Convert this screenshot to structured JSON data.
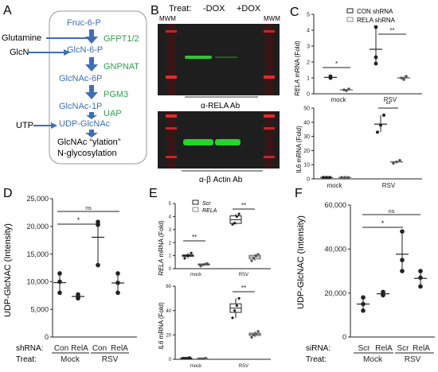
{
  "panels": {
    "a": {
      "letter": "A",
      "pathway": [
        "Fruc-6-P",
        "GlcN-6-P",
        "GlcNAc-6P",
        "GlcNAc-1P",
        "UDP-GlcNAc"
      ],
      "enzymes": [
        "GFPT1/2",
        "GNPNAT",
        "PGM3",
        "UAP"
      ],
      "inputs": [
        "Glutamine",
        "GlcN",
        "UTP"
      ],
      "product_line1": "GlcNAc “ylation”",
      "product_line2": "N-glycosylation",
      "colors": {
        "pathway": "#3d6fb5",
        "enzyme": "#2e9e4f",
        "arrow": "#3d6fb5"
      }
    },
    "b": {
      "letter": "B",
      "treat_label": "Treat:",
      "lanes": [
        "-DOX",
        "+DOX"
      ],
      "marker": "MWM",
      "blot1_label": "α-RELA Ab",
      "blot2_label": "α-β Actin Ab"
    },
    "c": {
      "letter": "C",
      "legend": [
        "CON shRNA",
        "RELA shRNA"
      ],
      "top_ylabel": "mRNA (Fold)",
      "top_ylabel_italic": "RELA",
      "bottom_ylabel": "IL6 mRNA (Fold)",
      "xlabels": [
        "mock",
        "RSV"
      ],
      "sig": [
        "*",
        "**",
        "**"
      ]
    },
    "d": {
      "letter": "D",
      "ylabel": "UDP-GlcNAC (Intensity)",
      "row1_label": "shRNA:",
      "row2_label": "Treat:",
      "shrna": [
        "Con",
        "RelA",
        "Con",
        "RelA"
      ],
      "treat": [
        "Mock",
        "RSV"
      ],
      "sig": [
        "*",
        "ns"
      ]
    },
    "e": {
      "letter": "E",
      "legend": [
        "Scr",
        "RELA"
      ],
      "top_ylabel": "mRNA (Fold)",
      "top_ylabel_italic": "RELA",
      "bottom_ylabel": "mRNA (Fold)",
      "bottom_ylabel_italic": "IL6",
      "xlabels": [
        "mock",
        "RSV"
      ],
      "sig": [
        "**",
        "**",
        "**"
      ]
    },
    "f": {
      "letter": "F",
      "ylabel": "UDP-GlcNAC (Intensity)",
      "row1_label": "siRNA:",
      "row2_label": "Treat:",
      "sirna": [
        "Scr",
        "RelA",
        "Scr",
        "RelA"
      ],
      "treat": [
        "Mock",
        "RSV"
      ],
      "sig": [
        "*",
        "ns"
      ]
    }
  },
  "chart_data": [
    {
      "panel": "C-top",
      "type": "scatter",
      "ylabel": "RELA mRNA (Fold)",
      "ylim": [
        0,
        5
      ],
      "yticks": [
        "0",
        "1",
        "2",
        "3",
        "4",
        "5"
      ],
      "categories": [
        "mock",
        "RSV"
      ],
      "series": [
        {
          "name": "CON shRNA",
          "values": [
            [
              1.0,
              1.0,
              1.1
            ],
            [
              1.9,
              2.3,
              4.2
            ]
          ]
        },
        {
          "name": "RELA shRNA",
          "values": [
            [
              0.25,
              0.2,
              0.3
            ],
            [
              1.0,
              0.9,
              1.1
            ]
          ]
        }
      ]
    },
    {
      "panel": "C-bottom",
      "type": "scatter",
      "ylabel": "IL6 mRNA (Fold)",
      "ylim": [
        0,
        50
      ],
      "yticks": [
        "0",
        "10",
        "20",
        "30",
        "40",
        "50"
      ],
      "categories": [
        "mock",
        "RSV"
      ],
      "series": [
        {
          "name": "CON shRNA",
          "values": [
            [
              1,
              1,
              1
            ],
            [
              33,
              38,
              45
            ]
          ]
        },
        {
          "name": "RELA shRNA",
          "values": [
            [
              1,
              1,
              1
            ],
            [
              11,
              12,
              13
            ]
          ]
        }
      ]
    },
    {
      "panel": "D",
      "type": "scatter",
      "ylabel": "UDP-GlcNAC (Intensity)",
      "ylim": [
        0,
        25000
      ],
      "yticks": [
        "0",
        "5,000",
        "10,000",
        "15,000",
        "20,000",
        "25,000"
      ],
      "groups": [
        {
          "shRNA": "Con",
          "treat": "Mock",
          "values": [
            8000,
            10000,
            11500
          ]
        },
        {
          "shRNA": "RelA",
          "treat": "Mock",
          "values": [
            7000,
            7300,
            7700
          ]
        },
        {
          "shRNA": "Con",
          "treat": "RSV",
          "values": [
            13000,
            20300,
            20800
          ]
        },
        {
          "shRNA": "RelA",
          "treat": "RSV",
          "values": [
            8000,
            9800,
            11500
          ]
        }
      ]
    },
    {
      "panel": "E-top",
      "type": "box",
      "ylabel": "RELA mRNA (Fold)",
      "ylim": [
        0,
        5
      ],
      "yticks": [
        "0",
        "1",
        "2",
        "3",
        "4",
        "5"
      ],
      "categories": [
        "mock",
        "RSV"
      ],
      "series": [
        {
          "name": "Scr",
          "values": [
            [
              0.8,
              1.0,
              1.0,
              1.2
            ],
            [
              3.4,
              3.5,
              4.0,
              4.2
            ]
          ]
        },
        {
          "name": "RELA",
          "values": [
            [
              0.2,
              0.3,
              0.35,
              0.4
            ],
            [
              0.6,
              0.8,
              1.0,
              1.1
            ]
          ]
        }
      ]
    },
    {
      "panel": "E-bottom",
      "type": "box",
      "ylabel": "IL6 mRNA (Fold)",
      "ylim": [
        0,
        60
      ],
      "yticks": [
        "0",
        "20",
        "40",
        "60"
      ],
      "categories": [
        "mock",
        "RSV"
      ],
      "series": [
        {
          "name": "Scr",
          "values": [
            [
              1,
              1,
              1.5,
              1
            ],
            [
              34,
              40,
              44,
              50
            ]
          ]
        },
        {
          "name": "RELA",
          "values": [
            [
              0.5,
              0.5,
              1,
              0.5
            ],
            [
              18,
              20,
              21,
              23
            ]
          ]
        }
      ]
    },
    {
      "panel": "F",
      "type": "scatter",
      "ylabel": "UDP-GlcNAC (Intensity)",
      "ylim": [
        0,
        60000
      ],
      "yticks": [
        "0",
        "20,000",
        "40,000",
        "60,000"
      ],
      "groups": [
        {
          "siRNA": "Scr",
          "treat": "Mock",
          "values": [
            12000,
            15000,
            18000
          ]
        },
        {
          "siRNA": "RelA",
          "treat": "Mock",
          "values": [
            19000,
            19500,
            20500
          ]
        },
        {
          "siRNA": "Scr",
          "treat": "RSV",
          "values": [
            30000,
            35000,
            48000
          ]
        },
        {
          "siRNA": "RelA",
          "treat": "RSV",
          "values": [
            23000,
            27000,
            30000
          ]
        }
      ]
    }
  ]
}
